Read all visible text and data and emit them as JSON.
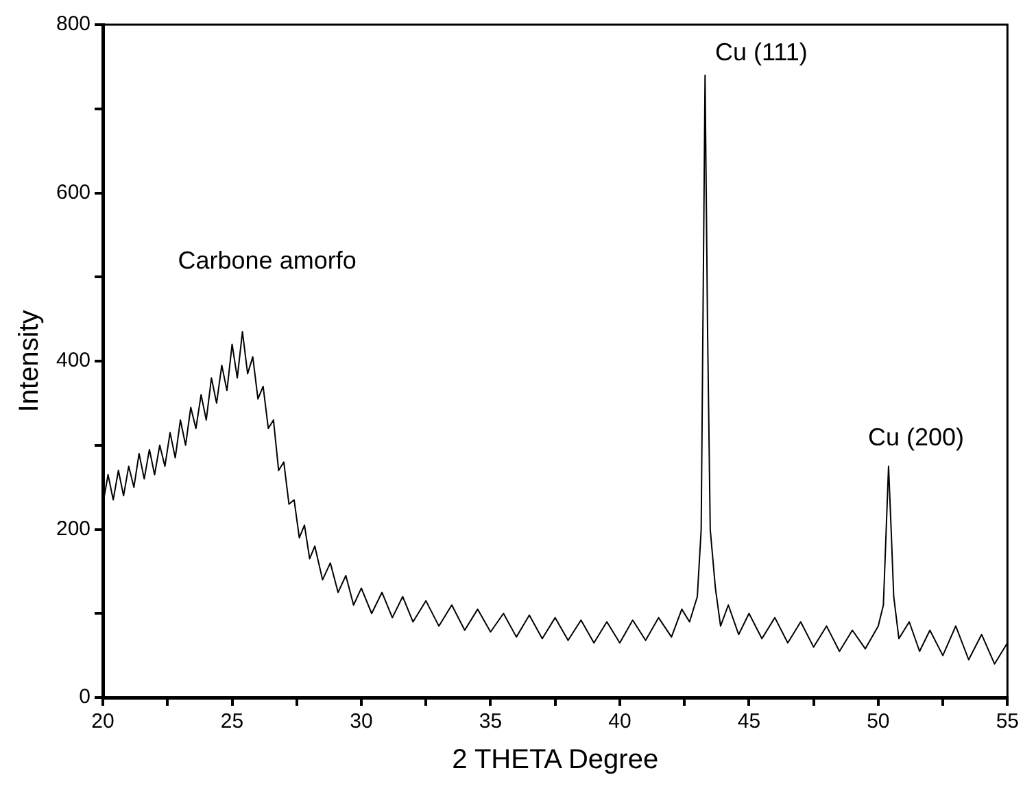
{
  "chart_data": {
    "type": "line",
    "xlabel": "2 THETA Degree",
    "ylabel": "Intensity",
    "xlim": [
      20,
      55
    ],
    "ylim": [
      0,
      800
    ],
    "xticks": [
      20,
      {
        "value": 22.5,
        "label": null
      },
      25,
      {
        "value": 27.5,
        "label": null
      },
      30,
      {
        "value": 32.5,
        "label": null
      },
      35,
      {
        "value": 37.5,
        "label": null
      },
      40,
      {
        "value": 42.5,
        "label": null
      },
      45,
      {
        "value": 47.5,
        "label": null
      },
      50,
      {
        "value": 52.5,
        "label": null
      },
      55
    ],
    "yticks": [
      0,
      {
        "value": 100,
        "label": null
      },
      200,
      {
        "value": 300,
        "label": null
      },
      400,
      {
        "value": 500,
        "label": null
      },
      600,
      {
        "value": 700,
        "label": null
      },
      800
    ],
    "grid": false,
    "legend": false,
    "marker": "none",
    "line_style": "solid",
    "annotations": [
      {
        "text": "Carbone amorfo",
        "x": 25.4,
        "y": 435
      },
      {
        "text": "Cu (111)",
        "x": 43.3,
        "y": 740
      },
      {
        "text": "Cu (200)",
        "x": 50.4,
        "y": 275
      }
    ],
    "series": [
      {
        "color": "#000000",
        "x": [
          20,
          20.2,
          20.4,
          20.6,
          20.8,
          21,
          21.2,
          21.4,
          21.6,
          21.8,
          22,
          22.2,
          22.4,
          22.6,
          22.8,
          23,
          23.2,
          23.4,
          23.6,
          23.8,
          24,
          24.2,
          24.4,
          24.6,
          24.8,
          25,
          25.2,
          25.4,
          25.6,
          25.8,
          26,
          26.2,
          26.4,
          26.6,
          26.8,
          27,
          27.2,
          27.4,
          27.6,
          27.8,
          28,
          28.2,
          28.5,
          28.8,
          29.1,
          29.4,
          29.7,
          30,
          30.4,
          30.8,
          31.2,
          31.6,
          32,
          32.5,
          33,
          33.5,
          34,
          34.5,
          35,
          35.5,
          36,
          36.5,
          37,
          37.5,
          38,
          38.5,
          39,
          39.5,
          40,
          40.5,
          41,
          41.5,
          42,
          42.4,
          42.7,
          43,
          43.15,
          43.3,
          43.4,
          43.5,
          43.7,
          43.9,
          44.2,
          44.6,
          45,
          45.5,
          46,
          46.5,
          47,
          47.5,
          48,
          48.5,
          49,
          49.5,
          50,
          50.2,
          50.4,
          50.5,
          50.6,
          50.8,
          51.2,
          51.6,
          52,
          52.5,
          53,
          53.5,
          54,
          54.5,
          55
        ],
        "values": [
          230,
          265,
          235,
          270,
          240,
          275,
          250,
          290,
          260,
          295,
          265,
          300,
          275,
          315,
          285,
          330,
          300,
          345,
          320,
          360,
          330,
          380,
          350,
          395,
          365,
          420,
          380,
          435,
          385,
          405,
          355,
          370,
          320,
          330,
          270,
          280,
          230,
          235,
          190,
          205,
          165,
          180,
          140,
          160,
          125,
          145,
          110,
          130,
          100,
          125,
          95,
          120,
          90,
          115,
          85,
          110,
          80,
          105,
          78,
          100,
          72,
          98,
          70,
          95,
          68,
          92,
          65,
          90,
          65,
          92,
          68,
          95,
          72,
          105,
          90,
          120,
          200,
          740,
          430,
          200,
          130,
          85,
          110,
          75,
          100,
          70,
          95,
          65,
          90,
          60,
          85,
          55,
          80,
          58,
          85,
          110,
          275,
          200,
          120,
          70,
          90,
          55,
          80,
          50,
          85,
          45,
          75,
          40,
          65
        ]
      }
    ]
  }
}
